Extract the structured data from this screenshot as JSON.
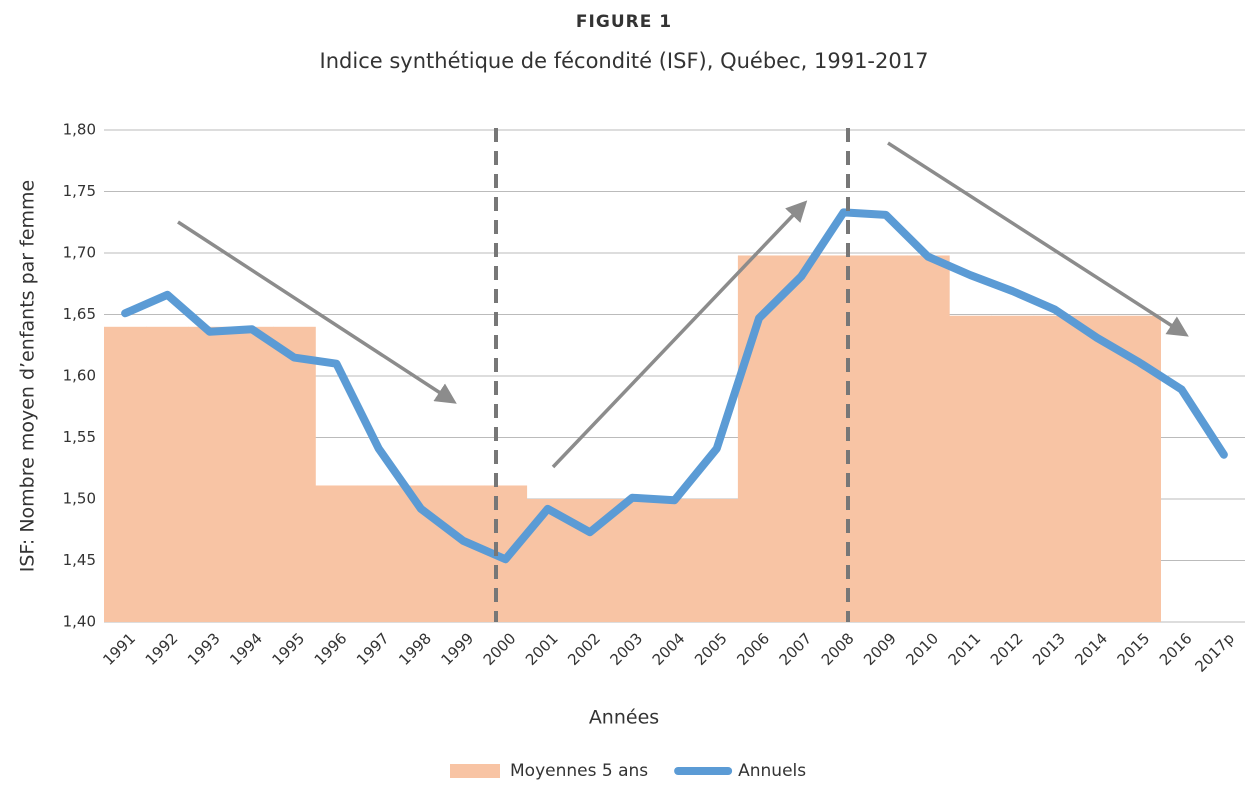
{
  "chart_data": {
    "type": "bar_line",
    "title": "FIGURE 1",
    "subtitle": "Indice synthétique de fécondité (ISF), Québec, 1991-2017",
    "x_label": "Années",
    "y_label": "ISF: Nombre moyen d’enfants par femme",
    "categories": [
      "1991",
      "1992",
      "1993",
      "1994",
      "1995",
      "1996",
      "1997",
      "1998",
      "1999",
      "2000",
      "2001",
      "2002",
      "2003",
      "2004",
      "2005",
      "2006",
      "2007",
      "2008",
      "2009",
      "2010",
      "2011",
      "2012",
      "2013",
      "2014",
      "2015",
      "2016",
      "2017p"
    ],
    "series": [
      {
        "name": "Moyennes 5 ans",
        "type": "bar",
        "color": "#f8c4a4",
        "values": [
          1.64,
          1.64,
          1.64,
          1.64,
          1.64,
          1.511,
          1.511,
          1.511,
          1.511,
          1.511,
          1.5,
          1.5,
          1.5,
          1.5,
          1.5,
          1.698,
          1.698,
          1.698,
          1.698,
          1.698,
          1.649,
          1.649,
          1.649,
          1.649,
          1.649,
          null,
          null
        ]
      },
      {
        "name": "Annuels",
        "type": "line",
        "color": "#5b9bd5",
        "values": [
          1.651,
          1.666,
          1.636,
          1.638,
          1.615,
          1.61,
          1.541,
          1.492,
          1.466,
          1.451,
          1.492,
          1.473,
          1.501,
          1.499,
          1.541,
          1.647,
          1.681,
          1.733,
          1.731,
          1.697,
          1.682,
          1.669,
          1.654,
          1.631,
          1.611,
          1.589,
          1.536
        ]
      }
    ],
    "ylim": [
      1.4,
      1.8
    ],
    "yticks": [
      {
        "value": 1.4,
        "label": "1,40"
      },
      {
        "value": 1.45,
        "label": "1,45"
      },
      {
        "value": 1.5,
        "label": "1,50"
      },
      {
        "value": 1.55,
        "label": "1,55"
      },
      {
        "value": 1.6,
        "label": "1,60"
      },
      {
        "value": 1.65,
        "label": "1,65"
      },
      {
        "value": 1.7,
        "label": "1,70"
      },
      {
        "value": 1.75,
        "label": "1,75"
      },
      {
        "value": 1.8,
        "label": "1,80"
      }
    ],
    "grid": true,
    "legend": "bottom"
  }
}
